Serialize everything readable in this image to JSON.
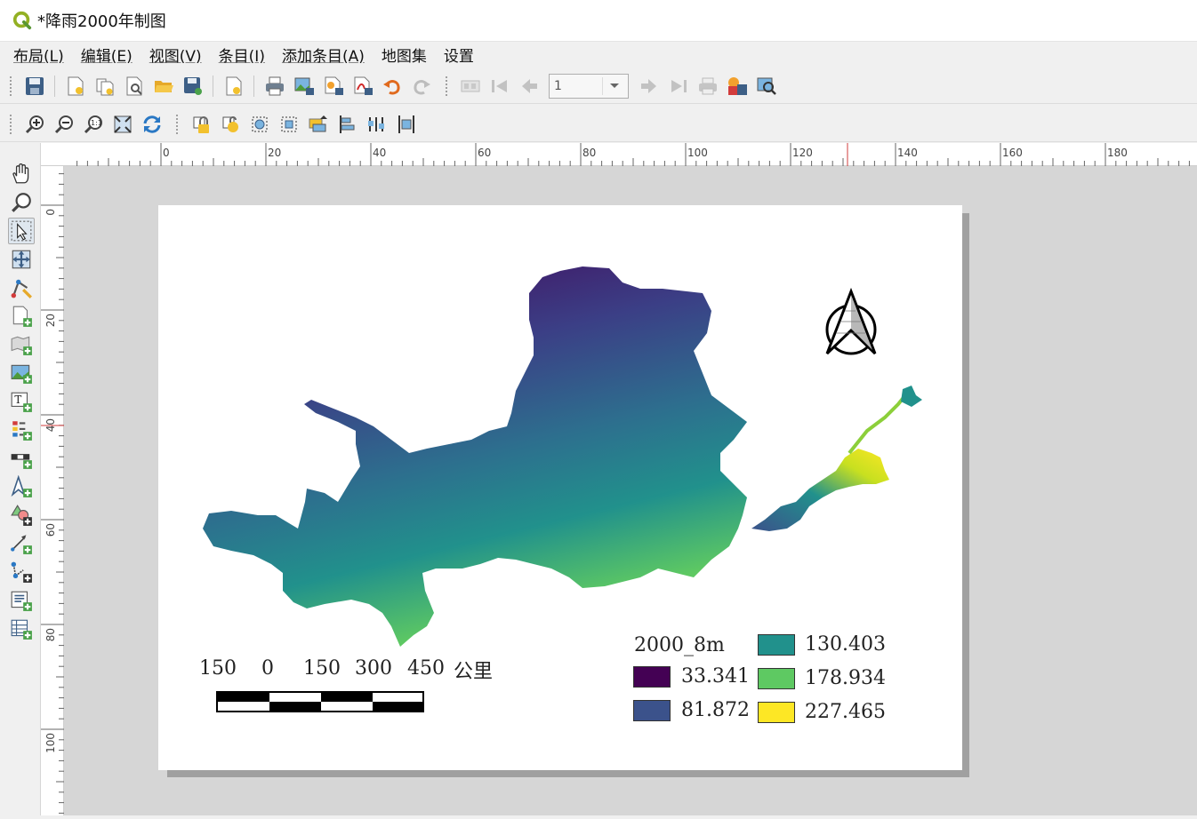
{
  "window": {
    "title": "*降雨2000年制图"
  },
  "menu": {
    "items": [
      {
        "label": "布局(L)",
        "name": "menu-layout"
      },
      {
        "label": "编辑(E)",
        "name": "menu-edit"
      },
      {
        "label": "视图(V)",
        "name": "menu-view"
      },
      {
        "label": "条目(I)",
        "name": "menu-items"
      },
      {
        "label": "添加条目(A)",
        "name": "menu-add-item"
      },
      {
        "label": "地图集",
        "name": "menu-atlas"
      },
      {
        "label": "设置",
        "name": "menu-settings"
      }
    ]
  },
  "toolbar": {
    "page_number": "1"
  },
  "ruler": {
    "h_labels": [
      "0",
      "20",
      "40",
      "60",
      "80",
      "100",
      "120",
      "140",
      "160",
      "180"
    ],
    "v_labels": [
      "0",
      "20",
      "40",
      "60",
      "80",
      "100"
    ]
  },
  "legend": {
    "title": "2000_8m",
    "entries": [
      {
        "label": "33.341",
        "color": "#440154"
      },
      {
        "label": "81.872",
        "color": "#3b528b"
      },
      {
        "label": "130.403",
        "color": "#21918c"
      },
      {
        "label": "178.934",
        "color": "#5ec962"
      },
      {
        "label": "227.465",
        "color": "#fde725"
      }
    ]
  },
  "scalebar": {
    "labels": [
      "150",
      "0",
      "150",
      "300",
      "450"
    ],
    "unit": "公里"
  },
  "colors": {
    "accent": "#5b8f29",
    "paper": "#ffffff",
    "canvas": "#d6d6d6"
  }
}
